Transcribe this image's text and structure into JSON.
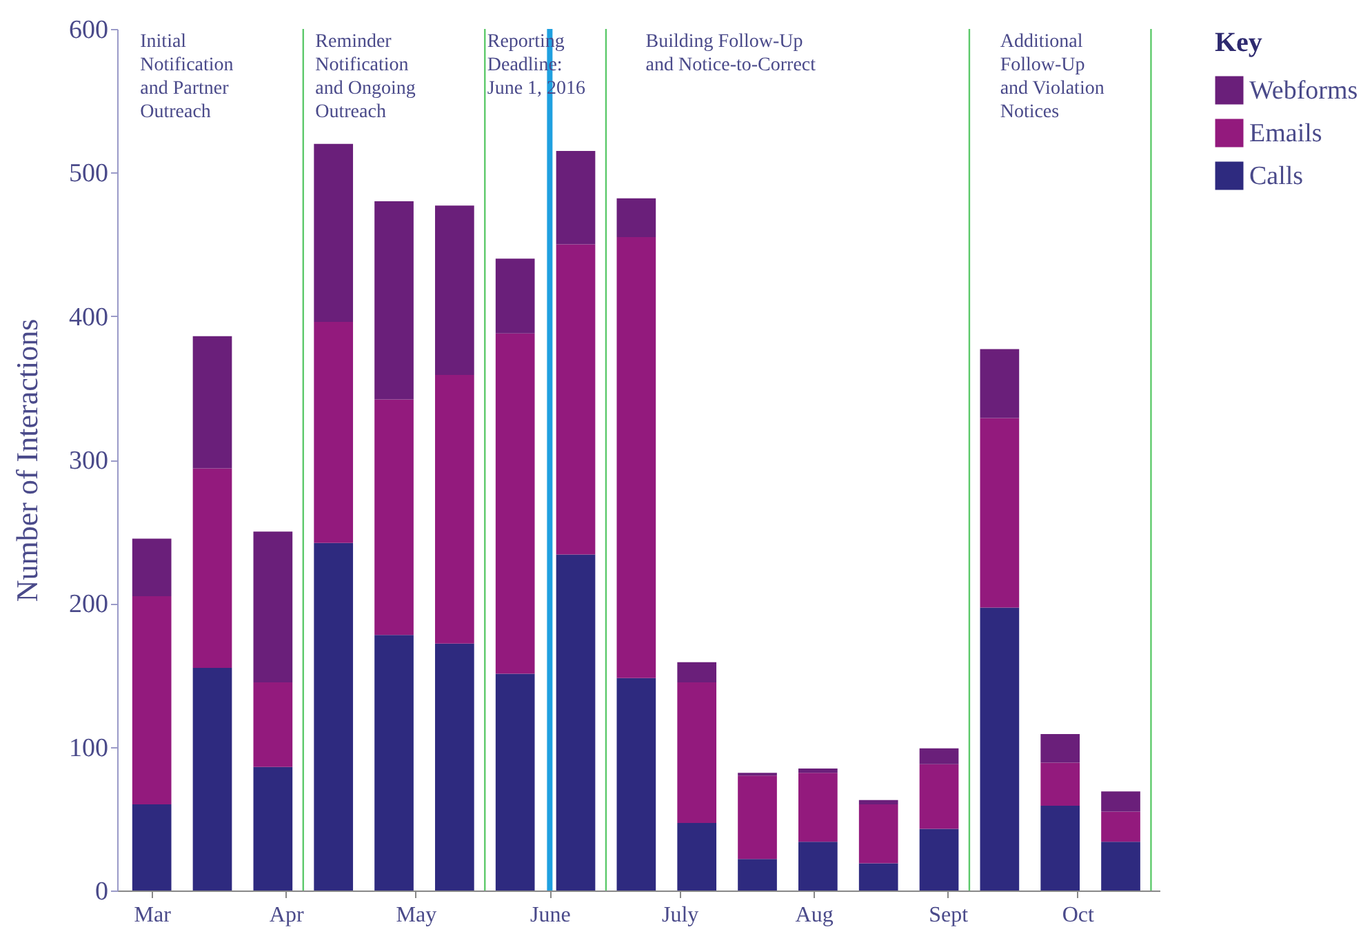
{
  "chart_data": {
    "type": "bar",
    "stacked": true,
    "ylabel": "Number of Interactions",
    "legend_title": "Key",
    "legend": "right",
    "x": [
      "2016-03-01",
      "2016-03-15",
      "2016-03-29",
      "2016-04-12",
      "2016-04-26",
      "2016-05-10",
      "2016-05-24",
      "2016-06-07",
      "2016-06-21",
      "2016-07-05",
      "2016-07-19",
      "2016-08-02",
      "2016-08-16",
      "2016-08-30",
      "2016-09-13",
      "2016-09-27",
      "2016-10-11"
    ],
    "xlim": [
      "2016-02-22",
      "2016-10-20"
    ],
    "xticks": [
      {
        "value": "2016-03-01",
        "label": "Mar"
      },
      {
        "value": "2016-04-01",
        "label": "Apr"
      },
      {
        "value": "2016-05-01",
        "label": "May"
      },
      {
        "value": "2016-06-01",
        "label": "June"
      },
      {
        "value": "2016-07-01",
        "label": "July"
      },
      {
        "value": "2016-08-01",
        "label": "Aug"
      },
      {
        "value": "2016-09-01",
        "label": "Sept"
      },
      {
        "value": "2016-10-01",
        "label": "Oct"
      }
    ],
    "ylim": [
      0,
      600
    ],
    "yticks": [
      0,
      100,
      200,
      300,
      400,
      500,
      600
    ],
    "series": [
      {
        "name": "Calls",
        "color": "#2e2a7f",
        "values": [
          60,
          155,
          86,
          242,
          178,
          172,
          151,
          234,
          148,
          47,
          22,
          34,
          19,
          43,
          197,
          59,
          34
        ]
      },
      {
        "name": "Emails",
        "color": "#931a7d",
        "values": [
          145,
          139,
          59,
          154,
          164,
          187,
          237,
          216,
          307,
          98,
          58,
          48,
          41,
          45,
          132,
          30,
          21
        ]
      },
      {
        "name": "Webforms",
        "color": "#6a1f7a",
        "values": [
          40,
          92,
          105,
          124,
          138,
          118,
          52,
          65,
          27,
          14,
          2,
          3,
          3,
          11,
          48,
          20,
          14
        ]
      }
    ],
    "ref_lines": [
      {
        "axis": "x",
        "value": "2016-04-05",
        "color": "#5cc96a"
      },
      {
        "axis": "x",
        "value": "2016-05-17",
        "color": "#5cc96a"
      },
      {
        "axis": "x",
        "value": "2016-06-01",
        "color": "#1fa0e0"
      },
      {
        "axis": "x",
        "value": "2016-06-14",
        "color": "#5cc96a"
      },
      {
        "axis": "x",
        "value": "2016-09-06",
        "color": "#5cc96a"
      },
      {
        "axis": "x",
        "value": "2016-10-18",
        "color": "#5cc96a"
      }
    ],
    "annotations": [
      "Initial\nNotification\nand Partner\nOutreach",
      "Reminder\nNotification\nand Ongoing\nOutreach",
      "Reporting\nDeadline:\nJune 1, 2016",
      "Building Follow-Up\nand Notice-to-Correct",
      "Additional\nFollow-Up\nand Violation\nNotices"
    ]
  }
}
